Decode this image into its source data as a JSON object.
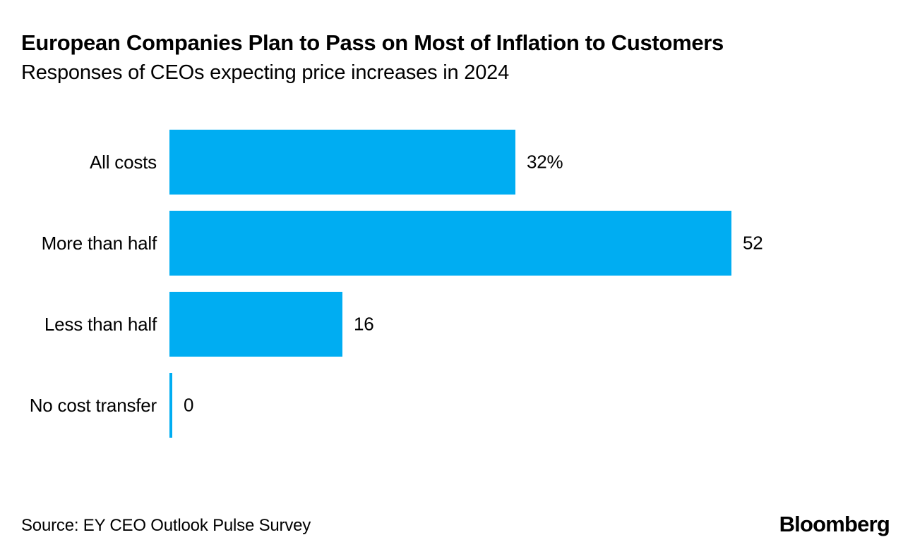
{
  "header": {
    "title": "European Companies Plan to Pass on Most of Inflation to Customers",
    "subtitle": "Responses of CEOs expecting price increases in 2024"
  },
  "footer": {
    "source": "Source: EY CEO Outlook Pulse Survey",
    "brand": "Bloomberg"
  },
  "colors": {
    "bar": "#00ADF2",
    "text": "#000000",
    "background": "#ffffff"
  },
  "chart_data": {
    "type": "bar",
    "orientation": "horizontal",
    "title": "European Companies Plan to Pass on Most of Inflation to Customers",
    "subtitle": "Responses of CEOs expecting price increases in 2024",
    "categories": [
      "All costs",
      "More than half",
      "Less than half",
      "No cost transfer"
    ],
    "values": [
      32,
      52,
      16,
      0
    ],
    "value_labels": [
      "32%",
      "52",
      "16",
      "0"
    ],
    "unit": "percent",
    "xlim": [
      0,
      52
    ],
    "grid": false,
    "legend": false,
    "source": "EY CEO Outlook Pulse Survey"
  }
}
